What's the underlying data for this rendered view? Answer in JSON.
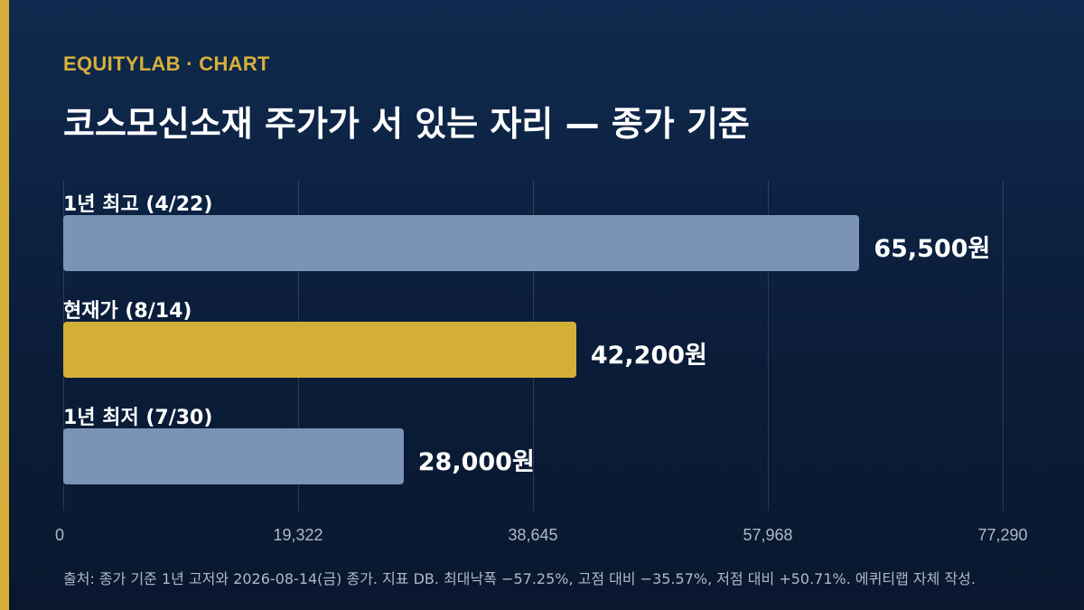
{
  "brand": "EQUITYLAB · CHART",
  "title": "코스모신소재 주가가 서 있는 자리 — 종가 기준",
  "footnote": "출처: 종가 기준 1년 고저와 2026-08-14(금) 종가. 지표 DB. 최대낙폭 −57.25%, 고점 대비 −35.57%, 저점 대비 +50.71%. 에퀴티랩 자체 작성.",
  "colors": {
    "accent": "#d6b03a",
    "bar_default": "#7b93b7",
    "bar_highlight": "#d4af37",
    "background": "#0b1d3a"
  },
  "chart_data": {
    "type": "bar",
    "orientation": "horizontal",
    "categories": [
      "1년 최고 (4/22)",
      "현재가 (8/14)",
      "1년 최저 (7/30)"
    ],
    "values": [
      65500,
      42200,
      28000
    ],
    "value_labels": [
      "65,500원",
      "42,200원",
      "28,000원"
    ],
    "highlight_index": 1,
    "xlim": [
      0,
      77290
    ],
    "xticks": [
      0,
      19322,
      38645,
      57968,
      77290
    ],
    "xtick_labels": [
      "0",
      "19,322",
      "38,645",
      "57,968",
      "77,290"
    ],
    "grid": true,
    "legend": "none"
  }
}
